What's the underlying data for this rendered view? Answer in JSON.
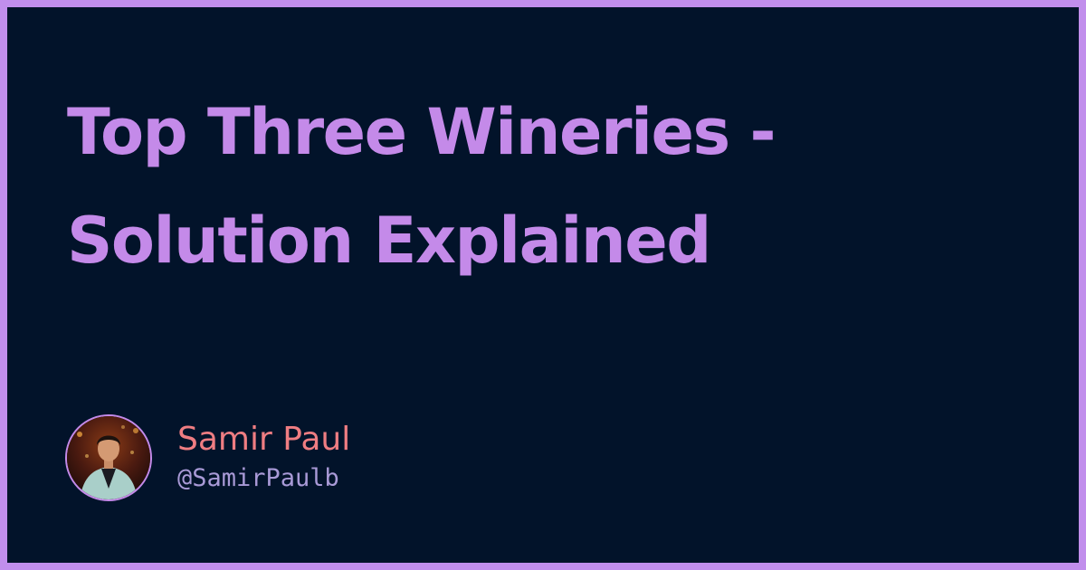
{
  "card": {
    "title": "Top Three Wineries - Solution Explained",
    "author": {
      "name": "Samir Paul",
      "handle": "@SamirPaulb",
      "avatar_icon": "profile-photo"
    }
  },
  "colors": {
    "frame": "#c18eec",
    "background": "#02132a",
    "title": "#c48ae9",
    "author_name": "#ef7d82",
    "author_handle": "#a99ad7"
  }
}
